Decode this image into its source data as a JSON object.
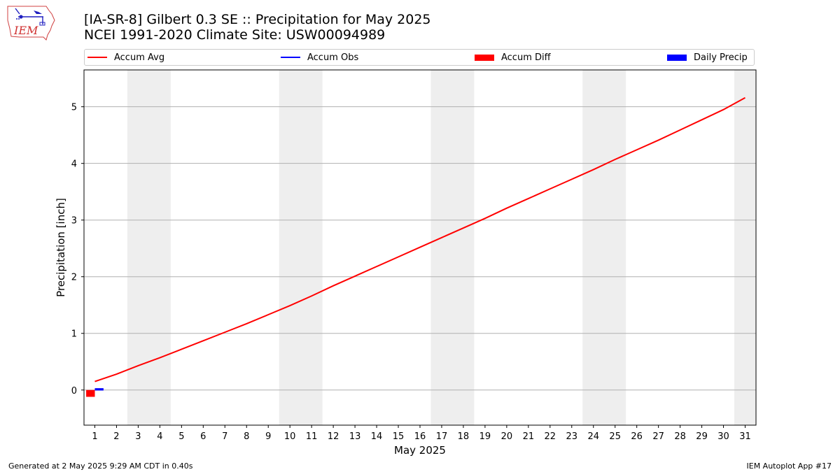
{
  "header": {
    "title": "[IA-SR-8] Gilbert 0.3 SE :: Precipitation for May 2025",
    "subtitle": "NCEI 1991-2020 Climate Site: USW00094989",
    "logo_text": "IEM"
  },
  "footer": {
    "generated": "Generated at 2 May 2025 9:29 AM CDT in 0.40s",
    "app": "IEM Autoplot App #17"
  },
  "colors": {
    "accum_avg": "#ff0000",
    "accum_obs": "#0000ff",
    "accum_diff": "#ff0000",
    "daily_precip": "#0000ff",
    "weekend_shade": "#eeeeee",
    "grid": "#b0b0b0"
  },
  "chart_data": {
    "type": "line",
    "title": "[IA-SR-8] Gilbert 0.3 SE :: Precipitation for May 2025",
    "subtitle": "NCEI 1991-2020 Climate Site: USW00094989",
    "xlabel": "May 2025",
    "ylabel": "Precipitation [inch]",
    "xlim": [
      0.5,
      31.5
    ],
    "ylim": [
      -0.62,
      5.65
    ],
    "yticks": [
      0,
      1,
      2,
      3,
      4,
      5
    ],
    "x": [
      1,
      2,
      3,
      4,
      5,
      6,
      7,
      8,
      9,
      10,
      11,
      12,
      13,
      14,
      15,
      16,
      17,
      18,
      19,
      20,
      21,
      22,
      23,
      24,
      25,
      26,
      27,
      28,
      29,
      30,
      31
    ],
    "grid": "y",
    "legend_position": "top",
    "shaded_days": [
      [
        2.5,
        4.5
      ],
      [
        9.5,
        11.5
      ],
      [
        16.5,
        18.5
      ],
      [
        23.5,
        25.5
      ],
      [
        30.5,
        31.5
      ]
    ],
    "series": [
      {
        "name": "Accum Avg",
        "type": "line",
        "x": [
          1,
          2,
          3,
          4,
          5,
          6,
          7,
          8,
          9,
          10,
          11,
          12,
          13,
          14,
          15,
          16,
          17,
          18,
          19,
          20,
          21,
          22,
          23,
          24,
          25,
          26,
          27,
          28,
          29,
          30,
          31
        ],
        "values": [
          0.15,
          0.28,
          0.43,
          0.57,
          0.72,
          0.87,
          1.02,
          1.17,
          1.33,
          1.49,
          1.66,
          1.84,
          2.01,
          2.18,
          2.35,
          2.52,
          2.69,
          2.86,
          3.03,
          3.21,
          3.38,
          3.55,
          3.72,
          3.89,
          4.07,
          4.24,
          4.41,
          4.59,
          4.77,
          4.95,
          5.16
        ]
      },
      {
        "name": "Accum Obs",
        "type": "line",
        "x": [
          1
        ],
        "values": [
          0.02
        ]
      },
      {
        "name": "Accum Diff",
        "type": "bar",
        "x": [
          1
        ],
        "values": [
          -0.12
        ]
      },
      {
        "name": "Daily Precip",
        "type": "bar",
        "x": [
          1
        ],
        "values": [
          0.01
        ]
      }
    ]
  }
}
